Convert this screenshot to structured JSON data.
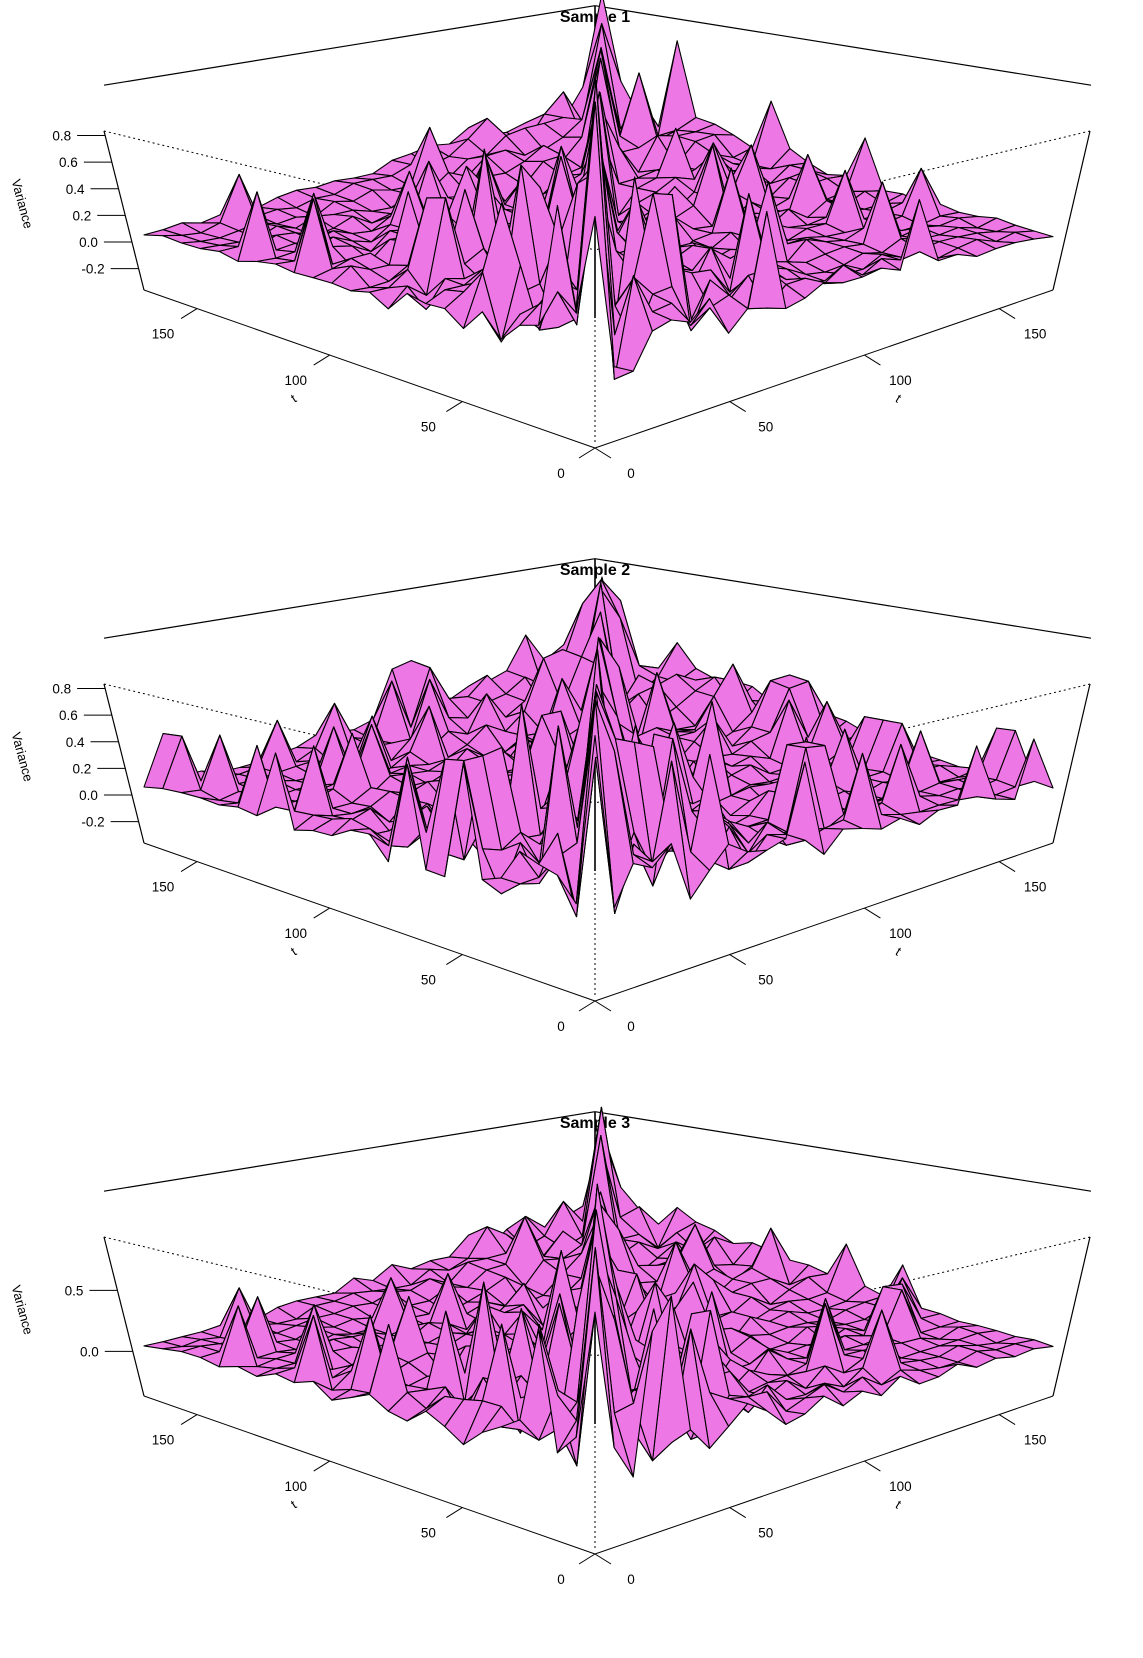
{
  "figure": {
    "surface_color": "#ee77e6",
    "edge_color": "#000000"
  },
  "chart_data": [
    {
      "type": "surface",
      "title": "Sample 1",
      "xlabel": "t",
      "ylabel": "t",
      "zlabel": "Variance",
      "x_ticks": [
        "0",
        "50",
        "100",
        "150"
      ],
      "y_ticks": [
        "0",
        "50",
        "100",
        "150"
      ],
      "z_ticks": [
        "-0.2",
        "0.0",
        "0.2",
        "0.4",
        "0.6",
        "0.8"
      ],
      "z_tick_values": [
        -0.2,
        0.0,
        0.2,
        0.4,
        0.6,
        0.8
      ],
      "xlim": [
        0,
        170
      ],
      "ylim": [
        0,
        170
      ],
      "zlim": [
        -0.3,
        0.8
      ],
      "diagonal_peak": 0.8,
      "off_diagonal_level": 0.0,
      "grid_cells": 24
    },
    {
      "type": "surface",
      "title": "Sample 2",
      "xlabel": "t",
      "ylabel": "t",
      "zlabel": "Variance",
      "x_ticks": [
        "0",
        "50",
        "100",
        "150"
      ],
      "y_ticks": [
        "0",
        "50",
        "100",
        "150"
      ],
      "z_ticks": [
        "-0.2",
        "0.0",
        "0.2",
        "0.4",
        "0.6",
        "0.8"
      ],
      "z_tick_values": [
        -0.2,
        0.0,
        0.2,
        0.4,
        0.6,
        0.8
      ],
      "xlim": [
        0,
        170
      ],
      "ylim": [
        0,
        170
      ],
      "zlim": [
        -0.3,
        0.8
      ],
      "diagonal_peak": 0.8,
      "off_diagonal_level": 0.0,
      "grid_cells": 24
    },
    {
      "type": "surface",
      "title": "Sample 3",
      "xlabel": "t",
      "ylabel": "t",
      "zlabel": "Variance",
      "x_ticks": [
        "0",
        "50",
        "100",
        "150"
      ],
      "y_ticks": [
        "0",
        "50",
        "100",
        "150"
      ],
      "z_ticks": [
        "0.0",
        "0.5"
      ],
      "z_tick_values": [
        0.0,
        0.5
      ],
      "xlim": [
        0,
        170
      ],
      "ylim": [
        0,
        170
      ],
      "zlim": [
        -0.3,
        0.9
      ],
      "diagonal_peak": 0.9,
      "off_diagonal_level": 0.0,
      "grid_cells": 24
    }
  ]
}
